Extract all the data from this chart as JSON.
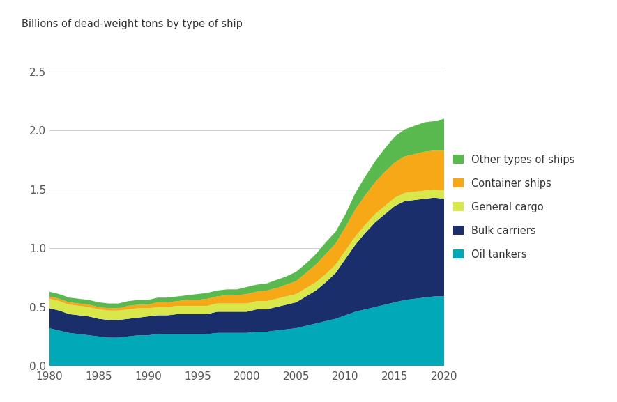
{
  "years": [
    1980,
    1981,
    1982,
    1983,
    1984,
    1985,
    1986,
    1987,
    1988,
    1989,
    1990,
    1991,
    1992,
    1993,
    1994,
    1995,
    1996,
    1997,
    1998,
    1999,
    2000,
    2001,
    2002,
    2003,
    2004,
    2005,
    2006,
    2007,
    2008,
    2009,
    2010,
    2011,
    2012,
    2013,
    2014,
    2015,
    2016,
    2017,
    2018,
    2019,
    2020
  ],
  "oil_tankers": [
    0.32,
    0.3,
    0.28,
    0.27,
    0.26,
    0.25,
    0.24,
    0.24,
    0.25,
    0.26,
    0.26,
    0.27,
    0.27,
    0.27,
    0.27,
    0.27,
    0.27,
    0.28,
    0.28,
    0.28,
    0.28,
    0.29,
    0.29,
    0.3,
    0.31,
    0.32,
    0.34,
    0.36,
    0.38,
    0.4,
    0.43,
    0.46,
    0.48,
    0.5,
    0.52,
    0.54,
    0.56,
    0.57,
    0.58,
    0.59,
    0.59
  ],
  "bulk_carriers": [
    0.17,
    0.17,
    0.16,
    0.16,
    0.16,
    0.15,
    0.15,
    0.15,
    0.15,
    0.15,
    0.16,
    0.16,
    0.16,
    0.17,
    0.17,
    0.17,
    0.17,
    0.18,
    0.18,
    0.18,
    0.18,
    0.19,
    0.19,
    0.2,
    0.21,
    0.22,
    0.25,
    0.28,
    0.33,
    0.39,
    0.48,
    0.57,
    0.65,
    0.72,
    0.77,
    0.82,
    0.84,
    0.84,
    0.84,
    0.84,
    0.83
  ],
  "general_cargo": [
    0.08,
    0.08,
    0.08,
    0.08,
    0.08,
    0.08,
    0.08,
    0.08,
    0.08,
    0.08,
    0.07,
    0.07,
    0.07,
    0.07,
    0.07,
    0.07,
    0.07,
    0.07,
    0.07,
    0.07,
    0.07,
    0.07,
    0.07,
    0.07,
    0.07,
    0.07,
    0.07,
    0.07,
    0.07,
    0.07,
    0.07,
    0.07,
    0.07,
    0.07,
    0.07,
    0.07,
    0.07,
    0.07,
    0.07,
    0.07,
    0.07
  ],
  "container_ships": [
    0.02,
    0.02,
    0.02,
    0.02,
    0.02,
    0.02,
    0.02,
    0.02,
    0.03,
    0.03,
    0.03,
    0.04,
    0.04,
    0.04,
    0.05,
    0.05,
    0.06,
    0.06,
    0.07,
    0.07,
    0.08,
    0.08,
    0.09,
    0.09,
    0.1,
    0.11,
    0.13,
    0.15,
    0.17,
    0.18,
    0.2,
    0.23,
    0.25,
    0.27,
    0.29,
    0.3,
    0.31,
    0.32,
    0.33,
    0.33,
    0.34
  ],
  "other_ships": [
    0.04,
    0.04,
    0.04,
    0.04,
    0.04,
    0.04,
    0.04,
    0.04,
    0.04,
    0.04,
    0.04,
    0.04,
    0.04,
    0.04,
    0.04,
    0.05,
    0.05,
    0.05,
    0.05,
    0.05,
    0.06,
    0.06,
    0.06,
    0.07,
    0.07,
    0.08,
    0.08,
    0.09,
    0.1,
    0.1,
    0.11,
    0.14,
    0.16,
    0.18,
    0.2,
    0.22,
    0.23,
    0.24,
    0.25,
    0.25,
    0.27
  ],
  "colors": {
    "oil_tankers": "#00a8b8",
    "bulk_carriers": "#1a2e6c",
    "general_cargo": "#d8e84a",
    "container_ships": "#f6a817",
    "other_ships": "#5ab94e"
  },
  "ylabel": "Billions of dead-weight tons by type of ship",
  "ylim": [
    0,
    2.7
  ],
  "yticks": [
    0.0,
    0.5,
    1.0,
    1.5,
    2.0,
    2.5
  ],
  "legend_labels": [
    "Other types of ships",
    "Container ships",
    "General cargo",
    "Bulk carriers",
    "Oil tankers"
  ],
  "legend_colors": [
    "#5ab94e",
    "#f6a817",
    "#d8e84a",
    "#1a2e6c",
    "#00a8b8"
  ],
  "background_color": "#ffffff",
  "grid_color": "#d0d0d0"
}
